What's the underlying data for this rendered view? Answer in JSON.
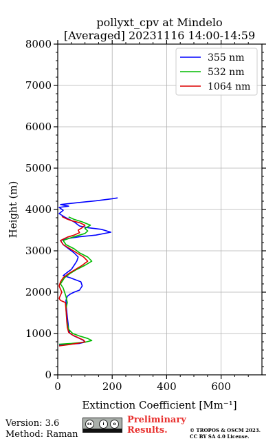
{
  "chart_data": {
    "type": "line",
    "title": "pollyxt_cpv at Mindelo",
    "subtitle": "[Averaged] 20231116 14:00-14:59",
    "xlabel": "Extinction Coefficient [Mm⁻¹]",
    "ylabel": "Height (m)",
    "xlim": [
      0,
      750
    ],
    "ylim": [
      0,
      8000
    ],
    "x_ticks": [
      "0",
      "200",
      "400",
      "600"
    ],
    "y_ticks": [
      "0",
      "1000",
      "2000",
      "3000",
      "4000",
      "5000",
      "6000",
      "7000",
      "8000"
    ],
    "grid": true,
    "legend_position": "top-right",
    "series": [
      {
        "name": "355 nm",
        "color": "#0000ff",
        "points": [
          [
            5,
            720
          ],
          [
            40,
            740
          ],
          [
            80,
            760
          ],
          [
            100,
            790
          ],
          [
            95,
            830
          ],
          [
            80,
            880
          ],
          [
            60,
            940
          ],
          [
            45,
            1000
          ],
          [
            40,
            1100
          ],
          [
            38,
            1250
          ],
          [
            35,
            1400
          ],
          [
            32,
            1600
          ],
          [
            30,
            1800
          ],
          [
            35,
            1900
          ],
          [
            45,
            1950
          ],
          [
            60,
            2000
          ],
          [
            80,
            2050
          ],
          [
            90,
            2150
          ],
          [
            85,
            2250
          ],
          [
            65,
            2300
          ],
          [
            45,
            2350
          ],
          [
            20,
            2400
          ],
          [
            35,
            2480
          ],
          [
            50,
            2550
          ],
          [
            60,
            2650
          ],
          [
            70,
            2750
          ],
          [
            75,
            2850
          ],
          [
            60,
            2950
          ],
          [
            40,
            3050
          ],
          [
            20,
            3150
          ],
          [
            10,
            3250
          ],
          [
            40,
            3300
          ],
          [
            80,
            3340
          ],
          [
            140,
            3380
          ],
          [
            195,
            3450
          ],
          [
            160,
            3520
          ],
          [
            110,
            3560
          ],
          [
            80,
            3600
          ],
          [
            60,
            3700
          ],
          [
            30,
            3800
          ],
          [
            5,
            3900
          ],
          [
            20,
            3980
          ],
          [
            5,
            4050
          ],
          [
            40,
            4080
          ],
          [
            10,
            4120
          ],
          [
            80,
            4170
          ],
          [
            140,
            4210
          ],
          [
            200,
            4260
          ],
          [
            220,
            4280
          ]
        ]
      },
      {
        "name": "532 nm",
        "color": "#00bb00",
        "points": [
          [
            5,
            740
          ],
          [
            50,
            760
          ],
          [
            100,
            790
          ],
          [
            125,
            830
          ],
          [
            110,
            880
          ],
          [
            80,
            940
          ],
          [
            55,
            1000
          ],
          [
            40,
            1100
          ],
          [
            35,
            1250
          ],
          [
            32,
            1400
          ],
          [
            30,
            1600
          ],
          [
            35,
            1750
          ],
          [
            30,
            1900
          ],
          [
            20,
            2100
          ],
          [
            10,
            2200
          ],
          [
            25,
            2350
          ],
          [
            45,
            2450
          ],
          [
            70,
            2550
          ],
          [
            100,
            2650
          ],
          [
            125,
            2750
          ],
          [
            110,
            2850
          ],
          [
            80,
            2950
          ],
          [
            60,
            3050
          ],
          [
            30,
            3150
          ],
          [
            20,
            3250
          ],
          [
            50,
            3320
          ],
          [
            80,
            3380
          ],
          [
            100,
            3420
          ],
          [
            110,
            3480
          ],
          [
            100,
            3540
          ],
          [
            120,
            3620
          ],
          [
            90,
            3700
          ],
          [
            60,
            3760
          ],
          [
            40,
            3820
          ]
        ]
      },
      {
        "name": "1064 nm",
        "color": "#dd0000",
        "points": [
          [
            5,
            700
          ],
          [
            40,
            730
          ],
          [
            80,
            770
          ],
          [
            100,
            800
          ],
          [
            95,
            840
          ],
          [
            75,
            900
          ],
          [
            55,
            960
          ],
          [
            40,
            1030
          ],
          [
            35,
            1150
          ],
          [
            33,
            1300
          ],
          [
            32,
            1450
          ],
          [
            30,
            1600
          ],
          [
            28,
            1750
          ],
          [
            10,
            1800
          ],
          [
            5,
            1850
          ],
          [
            15,
            2000
          ],
          [
            5,
            2150
          ],
          [
            10,
            2250
          ],
          [
            20,
            2350
          ],
          [
            40,
            2450
          ],
          [
            65,
            2550
          ],
          [
            90,
            2650
          ],
          [
            110,
            2750
          ],
          [
            95,
            2850
          ],
          [
            70,
            2950
          ],
          [
            45,
            3050
          ],
          [
            20,
            3150
          ],
          [
            10,
            3250
          ],
          [
            35,
            3330
          ],
          [
            60,
            3380
          ],
          [
            80,
            3440
          ],
          [
            75,
            3500
          ],
          [
            90,
            3560
          ],
          [
            100,
            3620
          ],
          [
            80,
            3680
          ],
          [
            50,
            3730
          ],
          [
            30,
            3780
          ],
          [
            15,
            3830
          ]
        ]
      }
    ]
  },
  "footer": {
    "version": "Version: 3.6",
    "method": "Method: Raman",
    "preliminary_line1": "Preliminary",
    "preliminary_line2": "Results.",
    "copyright_line1": "© TROPOS & OSCM 2023.",
    "copyright_line2": "CC BY SA 4.0 License."
  }
}
